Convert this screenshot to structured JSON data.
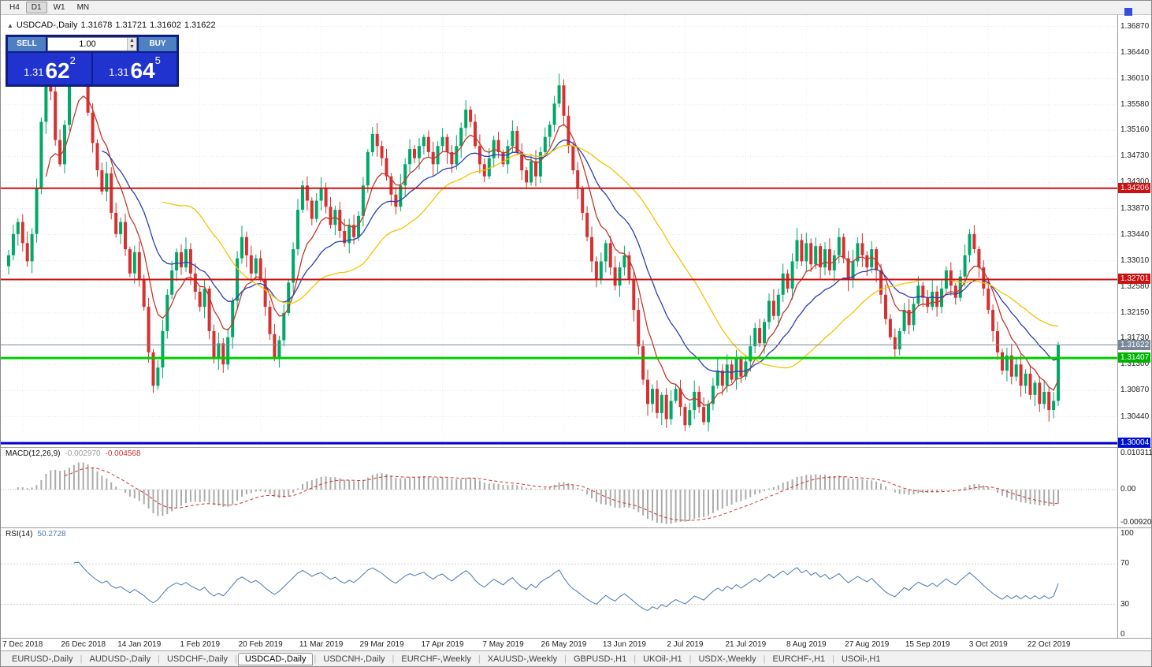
{
  "toolbar": {
    "timeframes": [
      {
        "label": "H4",
        "active": false
      },
      {
        "label": "D1",
        "active": true
      },
      {
        "label": "W1",
        "active": false
      },
      {
        "label": "MN",
        "active": false
      }
    ]
  },
  "chart_header": {
    "collapse_icon": "▲",
    "symbol": "USDCAD-,Daily",
    "open": "1.31678",
    "high": "1.31721",
    "low": "1.31602",
    "close": "1.31622"
  },
  "trade_panel": {
    "sell_label": "SELL",
    "buy_label": "BUY",
    "volume_value": "1.00",
    "sell_price": {
      "prefix": "1.31",
      "main": "62",
      "sup": "2"
    },
    "buy_price": {
      "prefix": "1.31",
      "main": "64",
      "sup": "5"
    }
  },
  "price_axis_labels": [
    "1.36870",
    "1.36440",
    "1.36010",
    "1.35580",
    "1.35160",
    "1.34730",
    "1.34300",
    "1.33870",
    "1.33440",
    "1.33010",
    "1.32580",
    "1.32150",
    "1.31730",
    "1.31300",
    "1.30870",
    "1.30440"
  ],
  "price_tags": [
    {
      "text": "1.34206",
      "price": 1.34206,
      "bg": "#cc1111"
    },
    {
      "text": "1.32701",
      "price": 1.32701,
      "bg": "#cc1111"
    },
    {
      "text": "1.31622",
      "price": 1.31622,
      "bg": "#778899"
    },
    {
      "text": "1.31407",
      "price": 1.31407,
      "bg": "#00b300"
    },
    {
      "text": "1.30004",
      "price": 1.30004,
      "bg": "#0011cc"
    }
  ],
  "levels": [
    {
      "price": 1.34206,
      "color": "#cc1111",
      "width": 2
    },
    {
      "price": 1.32701,
      "color": "#cc1111",
      "width": 2
    },
    {
      "price": 1.31407,
      "color": "#00cc00",
      "width": 3
    },
    {
      "price": 1.30004,
      "color": "#0000cc",
      "width": 3
    }
  ],
  "current_price": {
    "price": 1.31622,
    "color": "#778899"
  },
  "macd_panel": {
    "name": "MACD(12,26,9)",
    "value_main": "-0.002970",
    "value_signal": "-0.004568",
    "scale_top": "0.010311",
    "scale_zero": "0.00",
    "scale_bottom": "-0.009203"
  },
  "rsi_panel": {
    "name": "RSI(14)",
    "value": "50.2728",
    "levels": [
      "100",
      "70",
      "30",
      "0"
    ]
  },
  "date_labels": [
    "7 Dec 2018",
    "26 Dec 2018",
    "14 Jan 2019",
    "1 Feb 2019",
    "20 Feb 2019",
    "11 Mar 2019",
    "29 Mar 2019",
    "17 Apr 2019",
    "7 May 2019",
    "26 May 2019",
    "13 Jun 2019",
    "2 Jul 2019",
    "21 Jul 2019",
    "8 Aug 2019",
    "27 Aug 2019",
    "15 Sep 2019",
    "3 Oct 2019",
    "22 Oct 2019"
  ],
  "tabs": [
    "EURUSD-,Daily",
    "AUDUSD-,Daily",
    "USDCHF-,Daily",
    "USDCAD-,Daily",
    "USDCNH-,Daily",
    "EURCHF-,Weekly",
    "XAUUSD-,Weekly",
    "GBPUSD-,H1",
    "UKOil-,H1",
    "USDX-,Weekly",
    "EURCHF-,H1",
    "USOil-,H1"
  ],
  "active_tab_index": 3,
  "chart_data": {
    "type": "candlestick",
    "symbol": "USDCAD",
    "timeframe": "Daily",
    "price_min": 1.2994,
    "price_max": 1.3706,
    "up_color": "#00a868",
    "down_color": "#d63030",
    "x_label_bars": [
      3,
      16,
      28,
      41,
      54,
      67,
      80,
      93,
      106,
      119,
      132,
      145,
      158,
      171,
      184,
      197,
      210,
      223
    ],
    "closes": [
      1.331,
      1.3345,
      1.3365,
      1.333,
      1.33,
      1.3345,
      1.342,
      1.353,
      1.362,
      1.358,
      1.35,
      1.346,
      1.3525,
      1.3595,
      1.364,
      1.3655,
      1.36,
      1.3545,
      1.3495,
      1.345,
      1.3415,
      1.3445,
      1.338,
      1.3345,
      1.3365,
      1.332,
      1.328,
      1.3315,
      1.327,
      1.3225,
      1.315,
      1.3095,
      1.3125,
      1.3185,
      1.3245,
      1.3285,
      1.3315,
      1.329,
      1.332,
      1.328,
      1.325,
      1.3225,
      1.3255,
      1.3185,
      1.314,
      1.3165,
      1.313,
      1.3175,
      1.3235,
      1.3305,
      1.334,
      1.331,
      1.328,
      1.3305,
      1.327,
      1.3225,
      1.318,
      1.314,
      1.317,
      1.3215,
      1.3265,
      1.332,
      1.3385,
      1.3425,
      1.34,
      1.337,
      1.34,
      1.342,
      1.339,
      1.336,
      1.3385,
      1.335,
      1.333,
      1.336,
      1.334,
      1.3375,
      1.3425,
      1.348,
      1.351,
      1.349,
      1.347,
      1.344,
      1.341,
      1.339,
      1.3425,
      1.346,
      1.3485,
      1.347,
      1.349,
      1.3505,
      1.348,
      1.346,
      1.349,
      1.3505,
      1.348,
      1.346,
      1.349,
      1.352,
      1.355,
      1.353,
      1.349,
      1.346,
      1.344,
      1.347,
      1.35,
      1.348,
      1.346,
      1.349,
      1.3515,
      1.348,
      1.345,
      1.343,
      1.3465,
      1.344,
      1.348,
      1.3505,
      1.3525,
      1.356,
      1.359,
      1.354,
      1.349,
      1.345,
      1.342,
      1.338,
      1.334,
      1.33,
      1.327,
      1.33,
      1.333,
      1.329,
      1.326,
      1.329,
      1.331,
      1.327,
      1.322,
      1.316,
      1.3105,
      1.3065,
      1.309,
      1.305,
      1.308,
      1.304,
      1.307,
      1.309,
      1.306,
      1.303,
      1.3055,
      1.3085,
      1.306,
      1.3035,
      1.3065,
      1.3095,
      1.312,
      1.3095,
      1.313,
      1.3105,
      1.314,
      1.311,
      1.3135,
      1.316,
      1.319,
      1.3165,
      1.32,
      1.3235,
      1.321,
      1.3245,
      1.328,
      1.3255,
      1.33,
      1.3335,
      1.33,
      1.333,
      1.3295,
      1.3325,
      1.329,
      1.332,
      1.3285,
      1.331,
      1.334,
      1.3305,
      1.327,
      1.33,
      1.333,
      1.331,
      1.329,
      1.332,
      1.3285,
      1.3245,
      1.3205,
      1.3175,
      1.3155,
      1.3185,
      1.322,
      1.3195,
      1.323,
      1.326,
      1.324,
      1.3225,
      1.325,
      1.3225,
      1.3255,
      1.3285,
      1.326,
      1.324,
      1.3275,
      1.331,
      1.3345,
      1.332,
      1.329,
      1.3255,
      1.322,
      1.3185,
      1.315,
      1.312,
      1.3145,
      1.311,
      1.313,
      1.3095,
      1.3115,
      1.308,
      1.31,
      1.3065,
      1.3085,
      1.3055,
      1.307,
      1.3162
    ],
    "moving_averages": [
      {
        "type": "ema",
        "period": 8,
        "color": "#c0392b"
      },
      {
        "type": "ema",
        "period": 20,
        "color": "#2e3fb0"
      },
      {
        "type": "sma",
        "period": 34,
        "color": "#f2c500"
      }
    ],
    "macd": {
      "fast": 12,
      "slow": 26,
      "signal": 9
    },
    "rsi": {
      "period": 14,
      "upper": 70,
      "lower": 30
    }
  }
}
